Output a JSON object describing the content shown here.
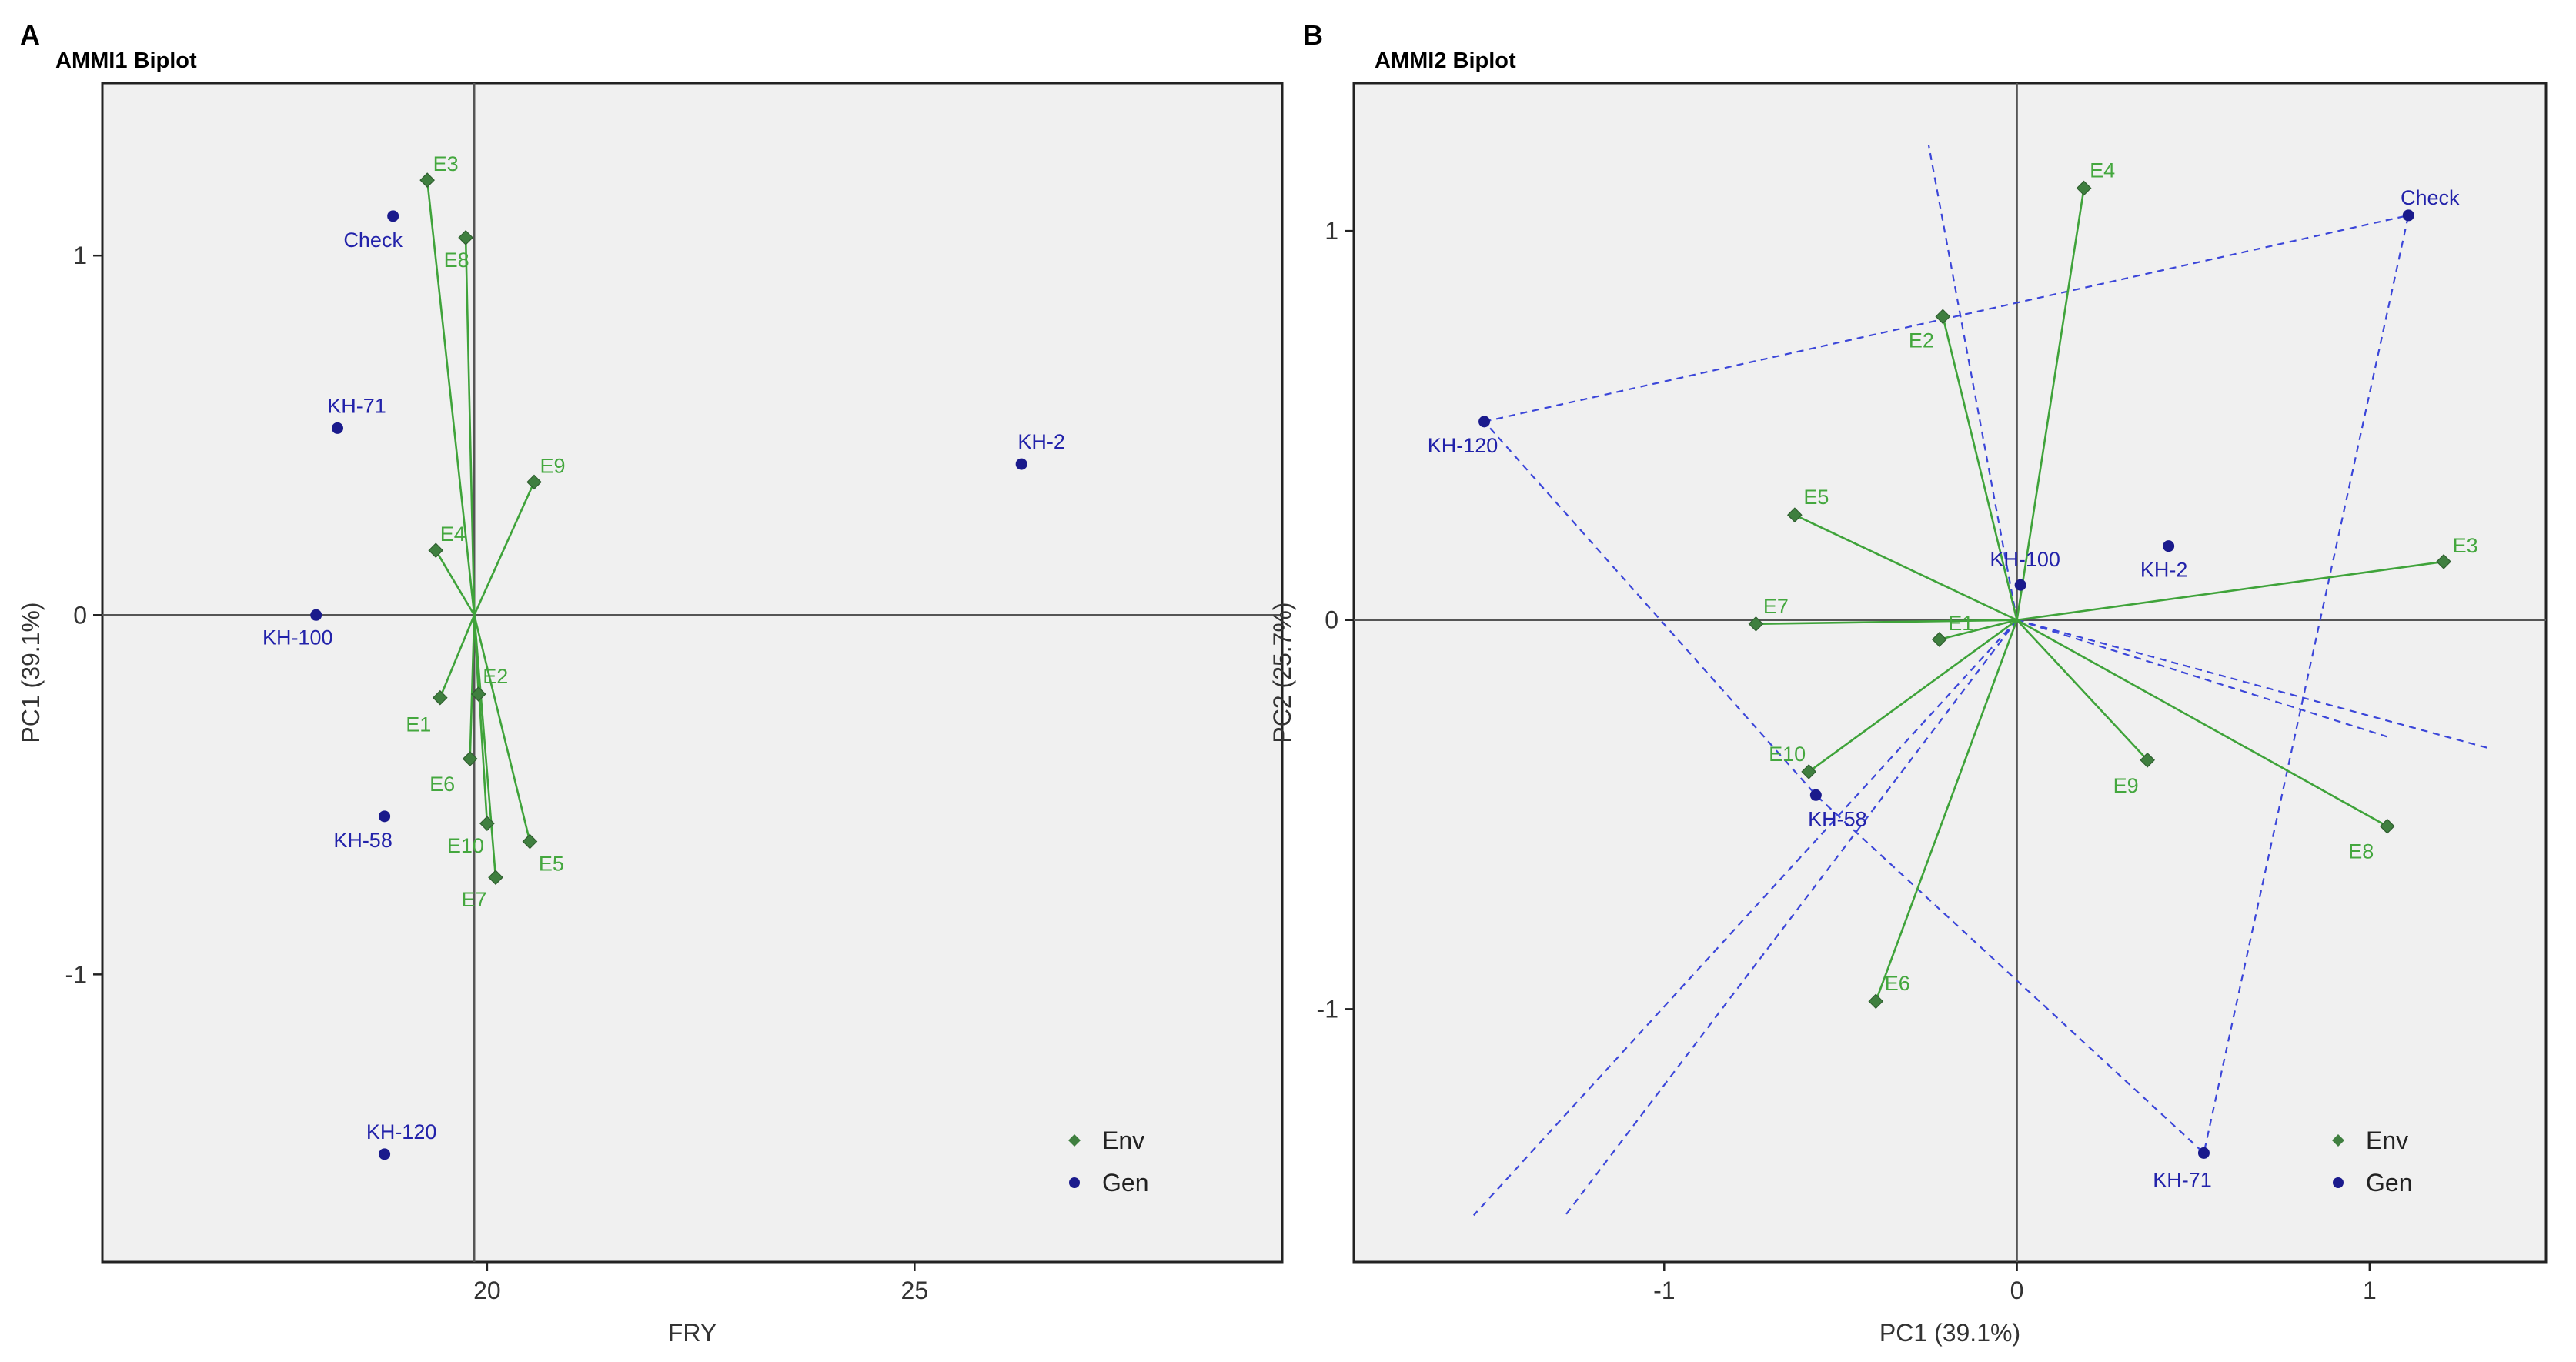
{
  "colors": {
    "background": "#f0f0f0",
    "border": "#222222",
    "refline": "#555555",
    "env_marker": "#3f7f3f",
    "env_line": "#3fa33a",
    "env_text": "#44a73e",
    "gen_marker": "#1a1a8c",
    "gen_text": "#2222aa",
    "polygon": "#3b46d9"
  },
  "chart_data": [
    {
      "panel": "A",
      "title": "AMMI1 Biplot",
      "type": "scatter",
      "xlabel": "FRY",
      "ylabel": "PC1 (39.1%)",
      "xlim": [
        15.5,
        29.3
      ],
      "ylim": [
        -1.8,
        1.48
      ],
      "xticks": [
        20,
        25
      ],
      "yticks": [
        -1,
        0,
        1
      ],
      "refline": {
        "x": 19.85,
        "y": 0
      },
      "legend": {
        "position": "bottom-right",
        "items": [
          "Env",
          "Gen"
        ]
      },
      "env_points": [
        {
          "name": "E3",
          "x": 19.3,
          "y": 1.21
        },
        {
          "name": "E8",
          "x": 19.75,
          "y": 1.05
        },
        {
          "name": "E9",
          "x": 20.55,
          "y": 0.37
        },
        {
          "name": "E4",
          "x": 19.4,
          "y": 0.18
        },
        {
          "name": "E2",
          "x": 19.9,
          "y": -0.22
        },
        {
          "name": "E1",
          "x": 19.45,
          "y": -0.23
        },
        {
          "name": "E6",
          "x": 19.8,
          "y": -0.4
        },
        {
          "name": "E10",
          "x": 20.0,
          "y": -0.58
        },
        {
          "name": "E5",
          "x": 20.5,
          "y": -0.63
        },
        {
          "name": "E7",
          "x": 20.1,
          "y": -0.73
        }
      ],
      "gen_points": [
        {
          "name": "Check",
          "x": 18.9,
          "y": 1.11
        },
        {
          "name": "KH-71",
          "x": 18.25,
          "y": 0.52
        },
        {
          "name": "KH-2",
          "x": 26.25,
          "y": 0.42
        },
        {
          "name": "KH-100",
          "x": 18.0,
          "y": 0.0
        },
        {
          "name": "KH-58",
          "x": 18.8,
          "y": -0.56
        },
        {
          "name": "KH-120",
          "x": 18.8,
          "y": -1.5
        }
      ],
      "polygon": [],
      "sector_lines": []
    },
    {
      "panel": "B",
      "title": "AMMI2 Biplot",
      "type": "scatter",
      "xlabel": "PC1 (39.1%)",
      "ylabel": "PC2 (25.7%)",
      "xlim": [
        -1.88,
        1.5
      ],
      "ylim": [
        -1.65,
        1.38
      ],
      "xticks": [
        -1,
        0,
        1
      ],
      "yticks": [
        -1,
        0,
        1
      ],
      "refline": {
        "x": 0,
        "y": 0
      },
      "legend": {
        "position": "bottom-right",
        "items": [
          "Env",
          "Gen"
        ]
      },
      "env_points": [
        {
          "name": "E4",
          "x": 0.19,
          "y": 1.11
        },
        {
          "name": "E2",
          "x": -0.21,
          "y": 0.78
        },
        {
          "name": "E5",
          "x": -0.63,
          "y": 0.27
        },
        {
          "name": "E3",
          "x": 1.21,
          "y": 0.15
        },
        {
          "name": "E7",
          "x": -0.74,
          "y": -0.01
        },
        {
          "name": "E1",
          "x": -0.22,
          "y": -0.05
        },
        {
          "name": "E10",
          "x": -0.59,
          "y": -0.39
        },
        {
          "name": "E9",
          "x": 0.37,
          "y": -0.36
        },
        {
          "name": "E8",
          "x": 1.05,
          "y": -0.53
        },
        {
          "name": "E6",
          "x": -0.4,
          "y": -0.98
        }
      ],
      "gen_points": [
        {
          "name": "Check",
          "x": 1.11,
          "y": 1.04
        },
        {
          "name": "KH-120",
          "x": -1.51,
          "y": 0.51
        },
        {
          "name": "KH-100",
          "x": 0.01,
          "y": 0.09
        },
        {
          "name": "KH-2",
          "x": 0.43,
          "y": 0.19
        },
        {
          "name": "KH-58",
          "x": -0.57,
          "y": -0.45
        },
        {
          "name": "KH-71",
          "x": 0.53,
          "y": -1.37
        }
      ],
      "polygon": [
        "KH-120",
        "Check",
        "KH-71",
        "KH-58"
      ],
      "sector_lines": [
        {
          "x": -0.25,
          "y": 1.22
        },
        {
          "x": -1.54,
          "y": -1.53
        },
        {
          "x": -1.28,
          "y": -1.53
        },
        {
          "x": 1.34,
          "y": -0.33
        },
        {
          "x": 1.05,
          "y": -0.3
        }
      ]
    }
  ]
}
